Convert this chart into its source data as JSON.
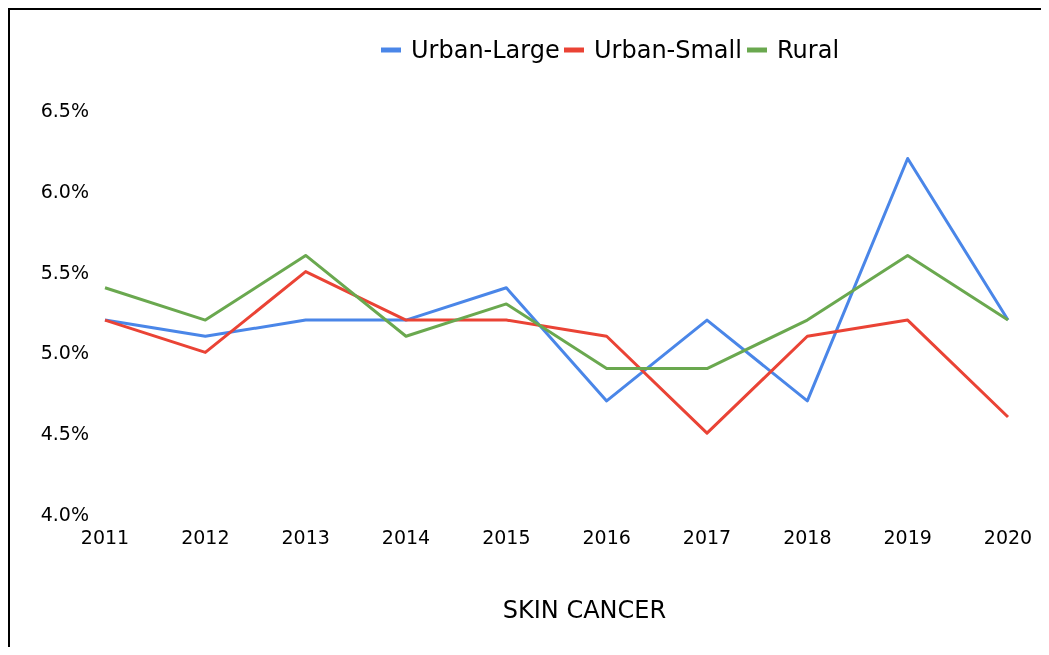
{
  "chart_data": {
    "type": "line",
    "xlabel": "SKIN CANCER",
    "categories": [
      "2011",
      "2012",
      "2013",
      "2014",
      "2015",
      "2016",
      "2017",
      "2018",
      "2019",
      "2020"
    ],
    "series": [
      {
        "name": "Urban-Large",
        "color": "#4a86e8",
        "values": [
          5.2,
          5.1,
          5.2,
          5.2,
          5.4,
          4.7,
          5.2,
          4.7,
          6.2,
          5.2
        ]
      },
      {
        "name": "Urban-Small",
        "color": "#ea4335",
        "values": [
          5.2,
          5.0,
          5.5,
          5.2,
          5.2,
          5.1,
          4.5,
          5.1,
          5.2,
          4.6
        ]
      },
      {
        "name": "Rural",
        "color": "#6aa84f",
        "values": [
          5.4,
          5.2,
          5.6,
          5.1,
          5.3,
          4.9,
          4.9,
          5.2,
          5.6,
          5.2
        ]
      }
    ],
    "ylim": [
      4.0,
      6.5
    ],
    "yticks": [
      {
        "value": 4.0,
        "label": "4.0%"
      },
      {
        "value": 4.5,
        "label": "4.5%"
      },
      {
        "value": 5.0,
        "label": "5.0%"
      },
      {
        "value": 5.5,
        "label": "5.5%"
      },
      {
        "value": 6.0,
        "label": "6.0%"
      },
      {
        "value": 6.5,
        "label": "6.5%"
      }
    ],
    "grid": false,
    "legend": "top",
    "marker": "none",
    "line_style": "solid"
  }
}
